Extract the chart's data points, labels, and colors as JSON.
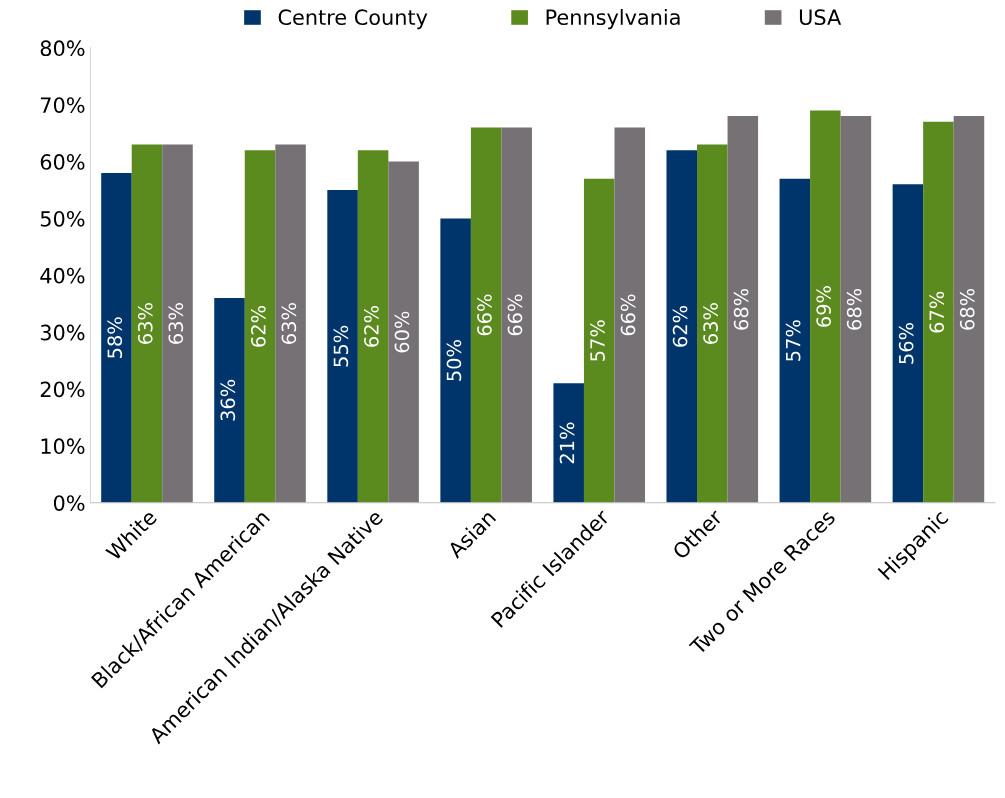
{
  "chart_data": {
    "type": "bar",
    "categories": [
      "White",
      "Black/African American",
      "American Indian/Alaska Native",
      "Asian",
      "Pacific Islander",
      "Other",
      "Two or More Races",
      "Hispanic"
    ],
    "series": [
      {
        "name": "Centre County",
        "color": "#00356b",
        "values": [
          58,
          36,
          55,
          50,
          21,
          62,
          57,
          56
        ]
      },
      {
        "name": "Pennsylvania",
        "color": "#5b8a1f",
        "values": [
          63,
          62,
          62,
          66,
          57,
          63,
          69,
          67
        ]
      },
      {
        "name": "USA",
        "color": "#767175",
        "values": [
          63,
          63,
          60,
          66,
          66,
          68,
          68,
          68
        ]
      }
    ],
    "ylim": [
      0,
      80
    ],
    "yticks": [
      {
        "value": 0,
        "label": "0%"
      },
      {
        "value": 10,
        "label": "10%"
      },
      {
        "value": 20,
        "label": "20%"
      },
      {
        "value": 30,
        "label": "30%"
      },
      {
        "value": 40,
        "label": "40%"
      },
      {
        "value": 50,
        "label": "50%"
      },
      {
        "value": 60,
        "label": "60%"
      },
      {
        "value": 70,
        "label": "70%"
      },
      {
        "value": 80,
        "label": "80%"
      }
    ],
    "value_labels": [
      [
        "58%",
        "36%",
        "55%",
        "50%",
        "21%",
        "62%",
        "57%",
        "56%"
      ],
      [
        "63%",
        "62%",
        "62%",
        "66%",
        "57%",
        "63%",
        "69%",
        "67%"
      ],
      [
        "63%",
        "63%",
        "60%",
        "66%",
        "66%",
        "68%",
        "68%",
        "68%"
      ]
    ],
    "legend": "top",
    "grid": false
  }
}
